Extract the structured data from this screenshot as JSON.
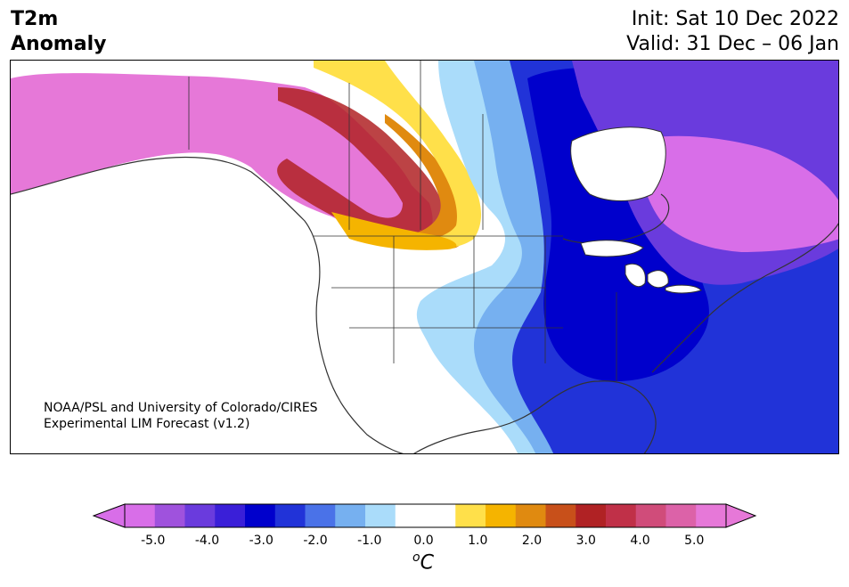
{
  "title": {
    "line1": "T2m",
    "line2": "Anomaly"
  },
  "info": {
    "init": "Init: Sat 10 Dec 2022",
    "valid": "Valid: 31 Dec – 06 Jan"
  },
  "credit": {
    "line1": "NOAA/PSL and University of Colorado/CIRES",
    "line2": "Experimental LIM Forecast (v1.2)"
  },
  "colorbar": {
    "units_sup": "o",
    "units_main": "C",
    "ticks": [
      "-5.0",
      "-4.0",
      "-3.0",
      "-2.0",
      "-1.0",
      "0.0",
      "1.0",
      "2.0",
      "3.0",
      "4.0",
      "5.0"
    ],
    "colors": [
      "#d86ee8",
      "#9f52dd",
      "#6a3bdd",
      "#3a1fd8",
      "#0000cc",
      "#2133d8",
      "#4a72e8",
      "#76b0f0",
      "#aadcfa",
      "#ffffff",
      "#ffffff",
      "#ffe04a",
      "#f5b400",
      "#e08a10",
      "#c8501a",
      "#b02224",
      "#c03048",
      "#d04c7a",
      "#dc62a8",
      "#e678d8"
    ],
    "under_color": "#d86ee8",
    "over_color": "#e678d8"
  }
}
